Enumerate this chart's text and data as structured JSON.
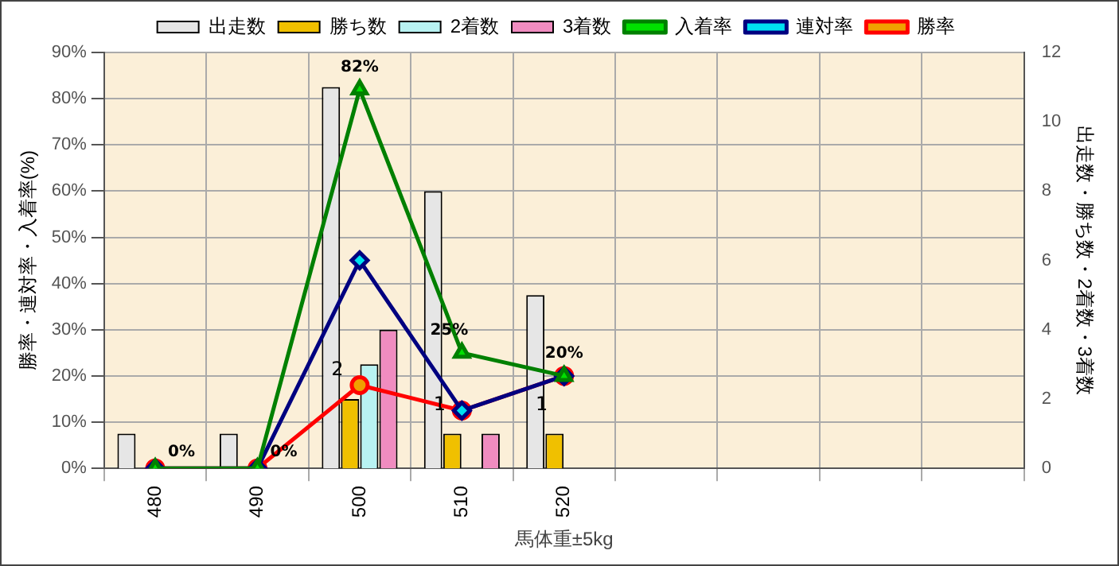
{
  "chart_data": {
    "type": "bar",
    "xlabel": "馬体重±5kg",
    "ylabel": "勝率・連対率・入着率(%)",
    "y2label": "出走数・勝ち数・2着数・3着数",
    "categories": [
      "480",
      "490",
      "500",
      "510",
      "520",
      null,
      null,
      null,
      null
    ],
    "series": [
      {
        "name": "出走数",
        "axis": "y2",
        "color": "#e6e6e6",
        "values": [
          1,
          1,
          11,
          8,
          5,
          null,
          null,
          null,
          null
        ]
      },
      {
        "name": "勝ち数",
        "axis": "y2",
        "color": "#f0c000",
        "values": [
          0,
          0,
          2,
          1,
          1,
          null,
          null,
          null,
          null
        ],
        "value_labels": [
          null,
          null,
          "2",
          "1",
          "1",
          null,
          null,
          null,
          null
        ]
      },
      {
        "name": "2着数",
        "axis": "y2",
        "color": "#b8f2f2",
        "values": [
          0,
          0,
          3,
          0,
          0,
          null,
          null,
          null,
          null
        ]
      },
      {
        "name": "3着数",
        "axis": "y2",
        "color": "#f08cc0",
        "values": [
          0,
          0,
          4,
          1,
          0,
          null,
          null,
          null,
          null
        ]
      },
      {
        "name": "入着率",
        "type": "line",
        "axis": "y",
        "color": "#008000",
        "marker": "triangle",
        "values": [
          0,
          0,
          82,
          25,
          20,
          null,
          null,
          null,
          null
        ],
        "value_labels": [
          "0%",
          "0%",
          "82%",
          "25%",
          "20%",
          null,
          null,
          null,
          null
        ]
      },
      {
        "name": "連対率",
        "type": "line",
        "axis": "y",
        "color": "#000080",
        "marker": "diamond",
        "values": [
          0,
          0,
          45,
          12.5,
          20,
          null,
          null,
          null,
          null
        ]
      },
      {
        "name": "勝率",
        "type": "line",
        "axis": "y",
        "color": "#ff0000",
        "marker": "circle",
        "values": [
          0,
          0,
          18,
          12.5,
          20,
          null,
          null,
          null,
          null
        ]
      }
    ],
    "ylim": [
      0,
      90
    ],
    "yticks": [
      {
        "value": 0,
        "label": "0%"
      },
      {
        "value": 10,
        "label": "10%"
      },
      {
        "value": 20,
        "label": "20%"
      },
      {
        "value": 30,
        "label": "30%"
      },
      {
        "value": 40,
        "label": "40%"
      },
      {
        "value": 50,
        "label": "50%"
      },
      {
        "value": 60,
        "label": "60%"
      },
      {
        "value": 70,
        "label": "70%"
      },
      {
        "value": 80,
        "label": "80%"
      },
      {
        "value": 90,
        "label": "90%"
      }
    ],
    "y2lim": [
      0,
      12
    ],
    "y2ticks": [
      0,
      2,
      4,
      6,
      8,
      10,
      12
    ],
    "grid": true,
    "legend": "top"
  }
}
